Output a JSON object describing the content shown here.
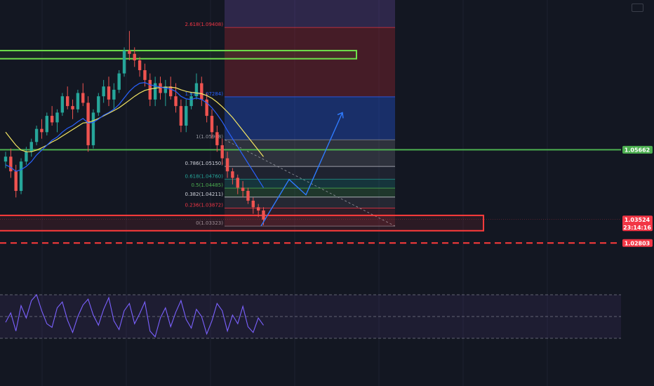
{
  "colors": {
    "background": "#131722",
    "grid": "#1c2030",
    "bull": "#26a69a",
    "bear": "#ef5350",
    "ema_fast": "#2962ff",
    "ema_slow": "#f5e663",
    "support_zone": "#ff3b3b",
    "resistance_zone": "#6ee14b",
    "level_green": "#4caf50",
    "projection": "#2f7bff",
    "oscillator": "#7b61ff"
  },
  "price_tags": [
    {
      "value": "1.05662",
      "color": "#4caf50"
    },
    {
      "value": "1.03524",
      "sub": "23:14:16",
      "color": "#f23645"
    },
    {
      "value": "1.02803",
      "color": "#f23645"
    }
  ],
  "fib_levels": [
    {
      "label": "2.618(1.09408)",
      "color": "#f23645"
    },
    {
      "label": "1.618(1.07284)",
      "color": "#2962ff"
    },
    {
      "label": "1(1.05968)",
      "color": "#9598a1"
    },
    {
      "label": "0.786(1.05150)",
      "color": "#d1d4dc"
    },
    {
      "label": "0.618(1.04760)",
      "color": "#26a69a"
    },
    {
      "label": "0.5(1.04485)",
      "color": "#4caf50"
    },
    {
      "label": "0.382(1.04211)",
      "color": "#d1d4dc"
    },
    {
      "label": "0.236(1.03872)",
      "color": "#f23645"
    },
    {
      "label": "0(1.03323)",
      "color": "#9598a1"
    }
  ],
  "chart_data": {
    "type": "candlestick",
    "ylim": [
      1.0225,
      1.1025
    ],
    "candles_ohlc": [
      [
        1.053,
        1.056,
        1.051,
        1.0545
      ],
      [
        1.0545,
        1.057,
        1.048,
        1.05
      ],
      [
        1.05,
        1.052,
        1.042,
        1.044
      ],
      [
        1.044,
        1.054,
        1.043,
        1.053
      ],
      [
        1.053,
        1.0575,
        1.052,
        1.056
      ],
      [
        1.056,
        1.06,
        1.0545,
        1.059
      ],
      [
        1.059,
        1.064,
        1.058,
        1.063
      ],
      [
        1.063,
        1.066,
        1.06,
        1.062
      ],
      [
        1.062,
        1.068,
        1.061,
        1.067
      ],
      [
        1.067,
        1.07,
        1.064,
        1.065
      ],
      [
        1.065,
        1.069,
        1.062,
        1.068
      ],
      [
        1.068,
        1.074,
        1.067,
        1.073
      ],
      [
        1.073,
        1.076,
        1.069,
        1.07
      ],
      [
        1.07,
        1.072,
        1.066,
        1.069
      ],
      [
        1.069,
        1.075,
        1.068,
        1.074
      ],
      [
        1.074,
        1.077,
        1.07,
        1.071
      ],
      [
        1.071,
        1.073,
        1.056,
        1.058
      ],
      [
        1.058,
        1.069,
        1.057,
        1.068
      ],
      [
        1.068,
        1.074,
        1.067,
        1.073
      ],
      [
        1.073,
        1.078,
        1.071,
        1.076
      ],
      [
        1.076,
        1.079,
        1.07,
        1.072
      ],
      [
        1.072,
        1.077,
        1.069,
        1.075
      ],
      [
        1.075,
        1.081,
        1.074,
        1.08
      ],
      [
        1.08,
        1.088,
        1.079,
        1.087
      ],
      [
        1.087,
        1.093,
        1.084,
        1.086
      ],
      [
        1.086,
        1.088,
        1.082,
        1.084
      ],
      [
        1.084,
        1.085,
        1.079,
        1.081
      ],
      [
        1.081,
        1.083,
        1.076,
        1.078
      ],
      [
        1.078,
        1.08,
        1.07,
        1.072
      ],
      [
        1.072,
        1.079,
        1.07,
        1.077
      ],
      [
        1.077,
        1.079,
        1.072,
        1.074
      ],
      [
        1.074,
        1.078,
        1.07,
        1.076
      ],
      [
        1.076,
        1.079,
        1.072,
        1.073
      ],
      [
        1.073,
        1.077,
        1.068,
        1.07
      ],
      [
        1.07,
        1.072,
        1.062,
        1.064
      ],
      [
        1.064,
        1.072,
        1.062,
        1.07
      ],
      [
        1.07,
        1.074,
        1.069,
        1.073
      ],
      [
        1.073,
        1.08,
        1.072,
        1.077
      ],
      [
        1.077,
        1.079,
        1.07,
        1.072
      ],
      [
        1.072,
        1.074,
        1.065,
        1.067
      ],
      [
        1.067,
        1.069,
        1.06,
        1.062
      ],
      [
        1.062,
        1.064,
        1.056,
        1.058
      ],
      [
        1.058,
        1.06,
        1.052,
        1.054
      ],
      [
        1.054,
        1.056,
        1.048,
        1.05
      ],
      [
        1.05,
        1.051,
        1.046,
        1.048
      ],
      [
        1.048,
        1.049,
        1.043,
        1.045
      ],
      [
        1.045,
        1.047,
        1.042,
        1.044
      ],
      [
        1.044,
        1.045,
        1.04,
        1.041
      ],
      [
        1.041,
        1.042,
        1.037,
        1.039
      ],
      [
        1.039,
        1.04,
        1.036,
        1.038
      ],
      [
        1.038,
        1.039,
        1.0335,
        1.0352
      ]
    ],
    "ema_fast": [
      1.052,
      1.0512,
      1.05,
      1.0505,
      1.0515,
      1.053,
      1.055,
      1.0565,
      1.058,
      1.0595,
      1.0605,
      1.062,
      1.0632,
      1.064,
      1.0652,
      1.0662,
      1.0648,
      1.065,
      1.066,
      1.0672,
      1.068,
      1.069,
      1.0705,
      1.0725,
      1.0745,
      1.076,
      1.077,
      1.0772,
      1.0765,
      1.0762,
      1.0758,
      1.0755,
      1.0752,
      1.0745,
      1.073,
      1.0722,
      1.072,
      1.0725,
      1.072,
      1.071,
      1.0695,
      1.0675,
      1.0652,
      1.0625,
      1.06,
      1.0575,
      1.055,
      1.0525,
      1.05,
      1.0475,
      1.045
    ],
    "ema_slow": [
      1.062,
      1.06,
      1.058,
      1.0565,
      1.056,
      1.056,
      1.0565,
      1.0572,
      1.058,
      1.059,
      1.0598,
      1.0608,
      1.0618,
      1.0628,
      1.0638,
      1.0648,
      1.065,
      1.0655,
      1.0662,
      1.067,
      1.0678,
      1.0686,
      1.0695,
      1.0706,
      1.0718,
      1.073,
      1.074,
      1.0748,
      1.0752,
      1.0755,
      1.0757,
      1.0758,
      1.0758,
      1.0756,
      1.075,
      1.0745,
      1.0742,
      1.074,
      1.0738,
      1.0732,
      1.0724,
      1.0712,
      1.0698,
      1.0682,
      1.0665,
      1.0645,
      1.0625,
      1.0605,
      1.0585,
      1.0565,
      1.0545
    ],
    "fib_values": [
      1.09408,
      1.07284,
      1.05968,
      1.0515,
      1.0476,
      1.04485,
      1.04211,
      1.03872,
      1.03323
    ],
    "resistance_zone": [
      1.087,
      1.0845
    ],
    "support_zone": [
      1.0365,
      1.0318
    ],
    "levels": {
      "green_level": 1.05662,
      "current_price": 1.03524,
      "dashed_level": 1.02803
    },
    "projection_path": [
      1.03323,
      1.0475,
      1.0428,
      1.068
    ],
    "oscillator": [
      42,
      55,
      30,
      65,
      48,
      72,
      80,
      58,
      40,
      35,
      62,
      70,
      45,
      28,
      50,
      66,
      74,
      52,
      38,
      60,
      76,
      44,
      32,
      58,
      68,
      40,
      54,
      70,
      30,
      22,
      48,
      62,
      36,
      56,
      72,
      46,
      34,
      60,
      50,
      26,
      44,
      68,
      58,
      30,
      52,
      40,
      64,
      36,
      28,
      48,
      38
    ],
    "oscillator_levels": [
      80,
      50,
      20
    ]
  }
}
